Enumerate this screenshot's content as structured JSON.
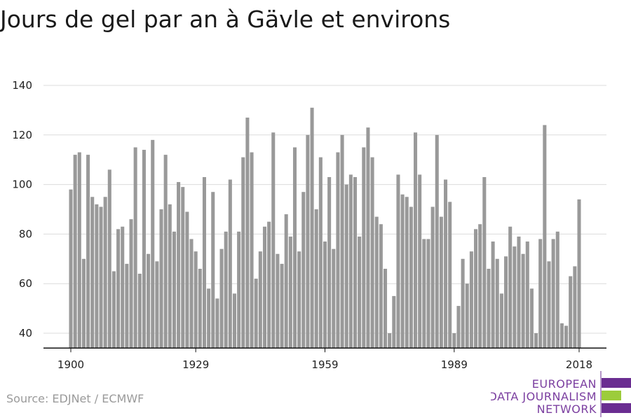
{
  "title": "Jours de gel par an à Gävle et environs",
  "source": "Source: EDJNet / ECMWF",
  "logo": {
    "lines": [
      "EUROPEAN",
      "DATA JOURNALISM",
      "NETWORK"
    ],
    "colors": {
      "primary": "#6a2d91",
      "accent": "#9ccc3b"
    }
  },
  "chart_data": {
    "type": "bar",
    "title": "Jours de gel par an à Gävle et environs",
    "xlabel": "",
    "ylabel": "",
    "x_start": 1900,
    "x_end": 2018,
    "x_ticks": [
      1900,
      1929,
      1959,
      1989,
      2018
    ],
    "ylim": [
      34,
      140
    ],
    "y_ticks": [
      40,
      60,
      80,
      100,
      120,
      140
    ],
    "grid": true,
    "bar_color": "#999999",
    "values": [
      98,
      112,
      113,
      70,
      112,
      95,
      92,
      91,
      95,
      106,
      65,
      82,
      83,
      68,
      86,
      115,
      64,
      114,
      72,
      118,
      69,
      90,
      112,
      92,
      81,
      101,
      99,
      89,
      78,
      73,
      66,
      103,
      58,
      97,
      54,
      74,
      81,
      102,
      56,
      81,
      111,
      127,
      113,
      62,
      73,
      83,
      85,
      121,
      72,
      68,
      88,
      79,
      115,
      73,
      97,
      120,
      131,
      90,
      111,
      77,
      103,
      74,
      113,
      120,
      100,
      104,
      103,
      79,
      115,
      123,
      111,
      87,
      84,
      66,
      40,
      55,
      104,
      96,
      95,
      91,
      121,
      104,
      78,
      78,
      91,
      120,
      87,
      102,
      93,
      40,
      51,
      70,
      60,
      73,
      82,
      84,
      103,
      66,
      77,
      70,
      56,
      71,
      83,
      75,
      79,
      72,
      77,
      58,
      40,
      78,
      124,
      69,
      78,
      81,
      44,
      43,
      63,
      67,
      94
    ]
  }
}
